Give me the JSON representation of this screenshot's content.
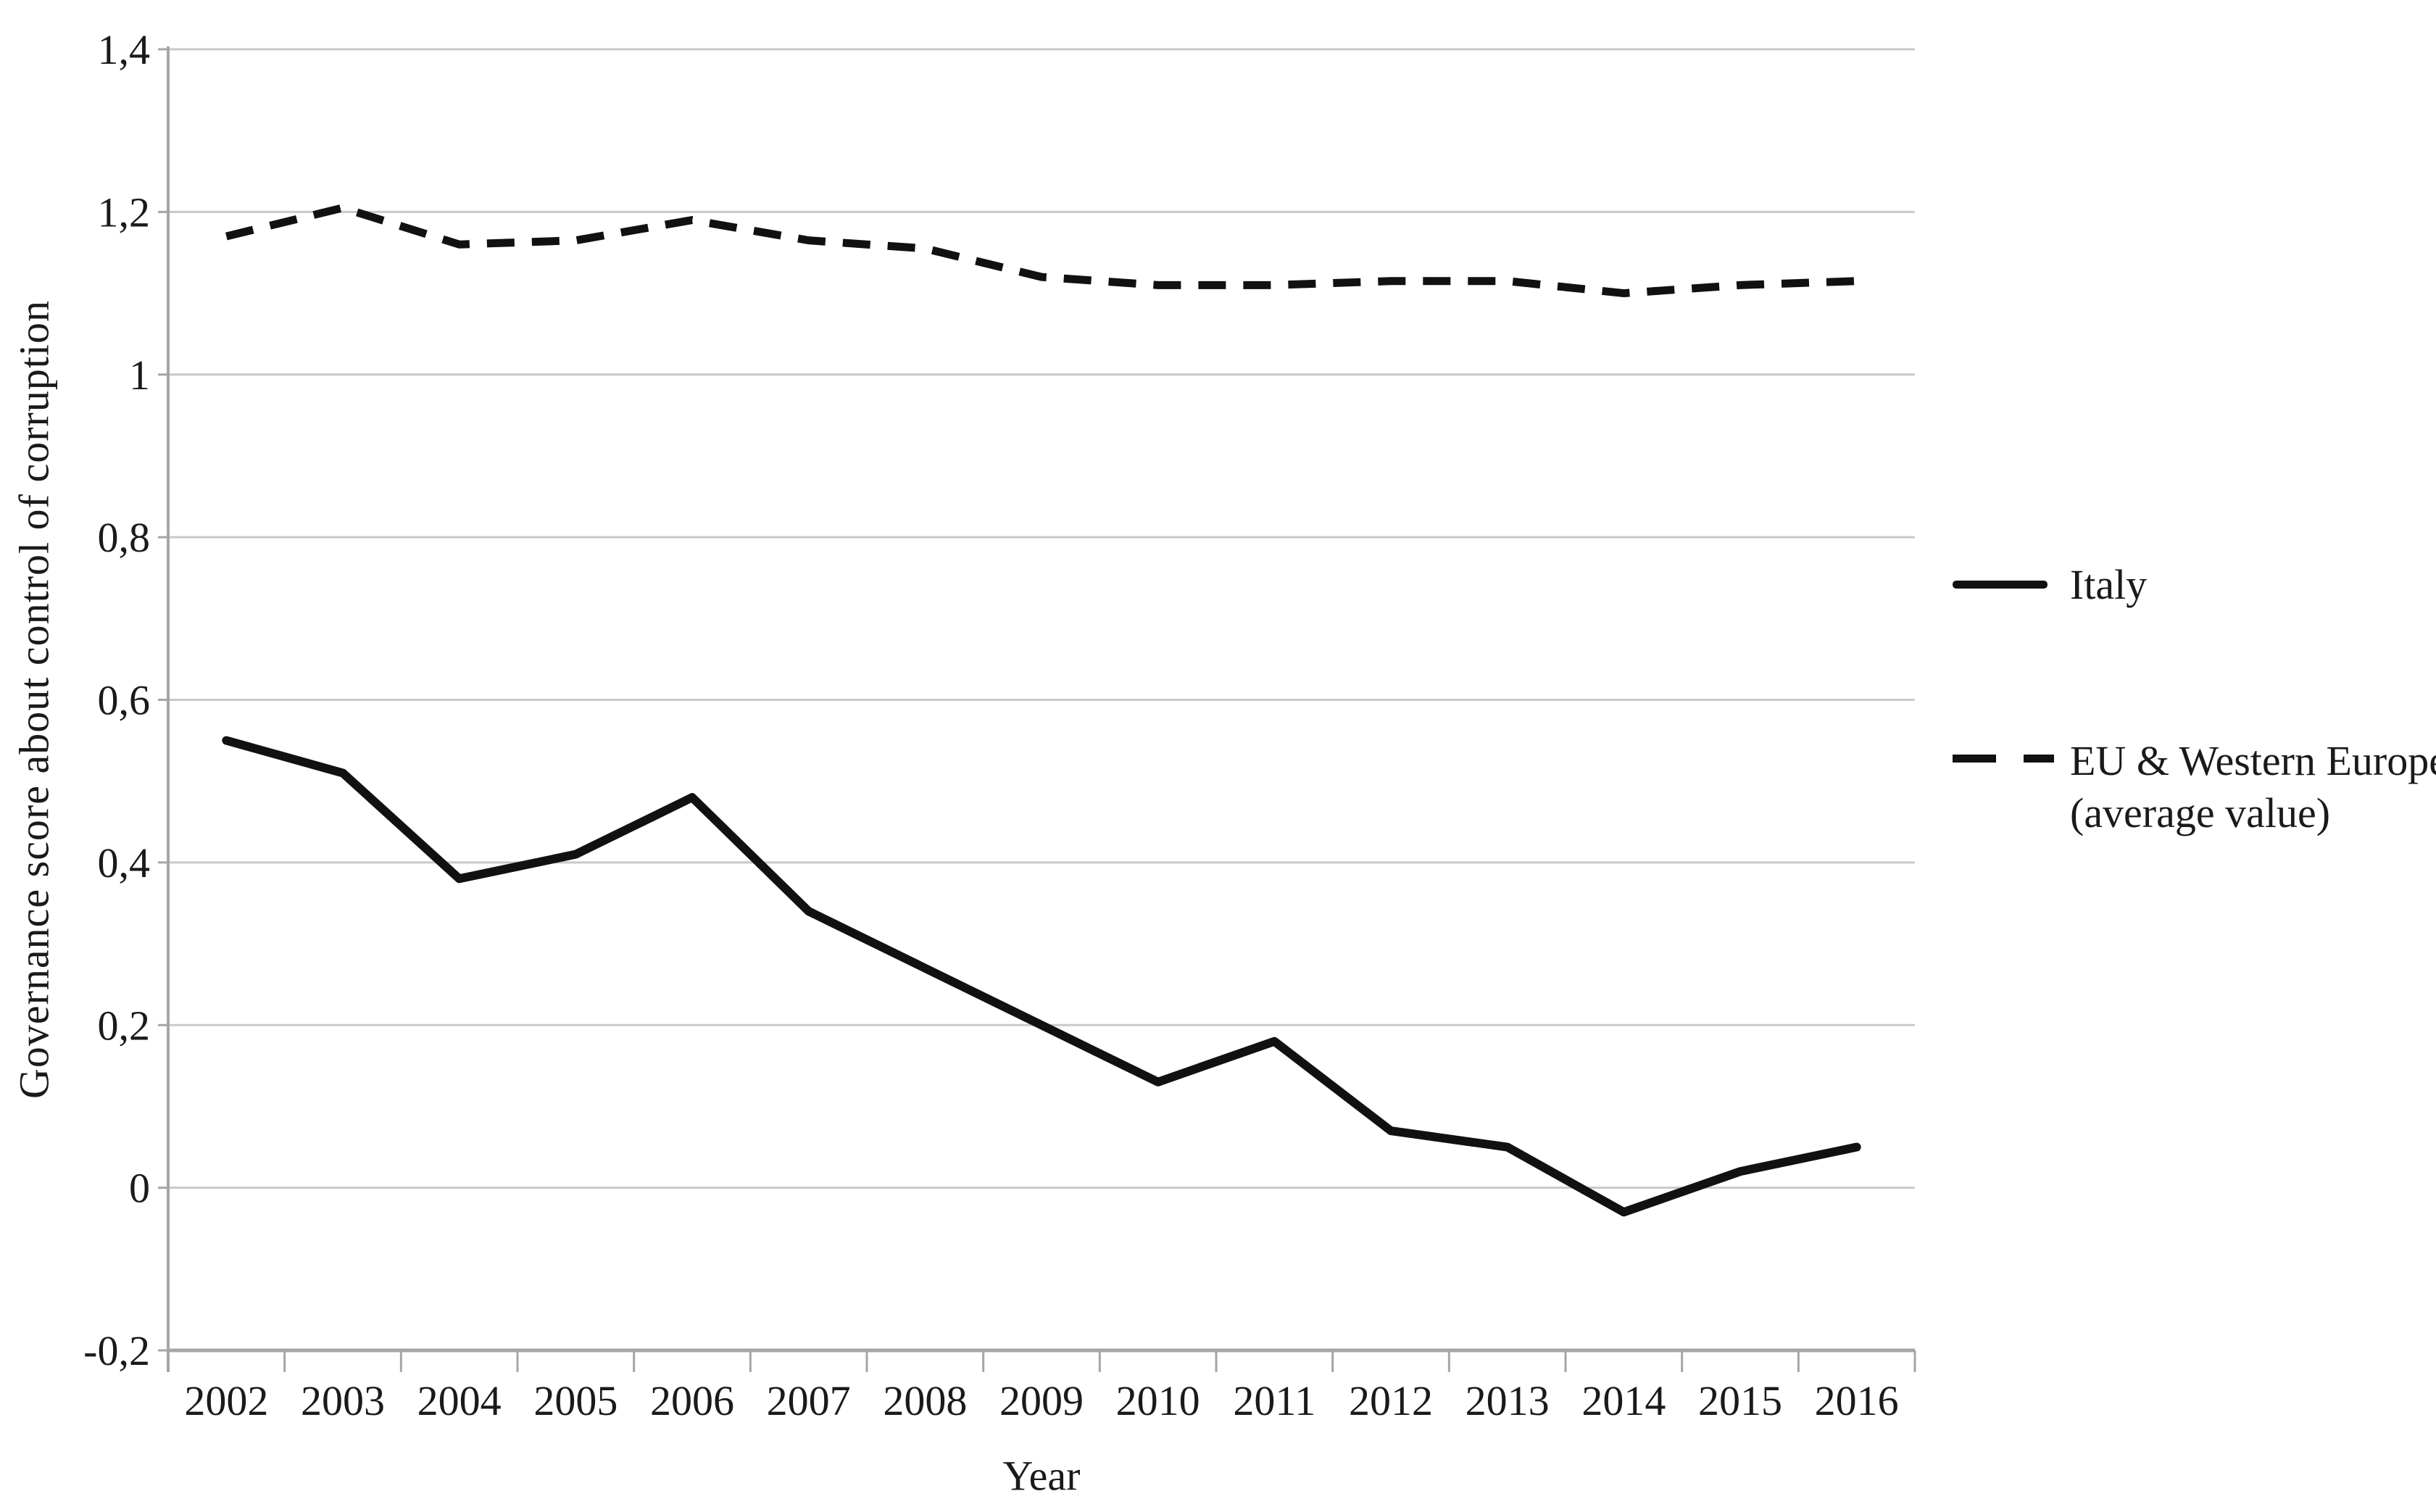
{
  "chart_data": {
    "type": "line",
    "title": "",
    "xlabel": "Year",
    "ylabel": "Governance score about control of corruption",
    "x": [
      2002,
      2003,
      2004,
      2005,
      2006,
      2007,
      2008,
      2009,
      2010,
      2011,
      2012,
      2013,
      2014,
      2015,
      2016
    ],
    "x_tick_labels": [
      "2002",
      "2003",
      "2004",
      "2005",
      "2006",
      "2007",
      "2008",
      "2009",
      "2010",
      "2011",
      "2012",
      "2013",
      "2014",
      "2015",
      "2016"
    ],
    "ylim": [
      -0.2,
      1.4
    ],
    "ytick_values": [
      1.4,
      1.2,
      1.0,
      0.8,
      0.6,
      0.4,
      0.2,
      0.0,
      -0.2
    ],
    "ytick_labels": [
      "1,4",
      "1,2",
      "1",
      "0,8",
      "0,6",
      "0,4",
      "0,2",
      "0",
      "-0,2"
    ],
    "decimal_separator": ",",
    "grid": "horizontal",
    "legend_position": "right",
    "series": [
      {
        "name": "Italy",
        "style": "solid",
        "color": "#111111",
        "values": [
          0.55,
          0.51,
          0.38,
          0.41,
          0.48,
          0.34,
          0.27,
          0.2,
          0.13,
          0.18,
          0.07,
          0.05,
          -0.03,
          0.02,
          0.05
        ]
      },
      {
        "name": "EU & Western Europe (average value)",
        "style": "dashed",
        "color": "#111111",
        "values": [
          1.17,
          1.205,
          1.16,
          1.165,
          1.19,
          1.165,
          1.155,
          1.12,
          1.11,
          1.11,
          1.115,
          1.115,
          1.1,
          1.11,
          1.115
        ]
      }
    ]
  },
  "axes": {
    "x_title": "Year",
    "y_title": "Governance score about control of corruption"
  },
  "legend": {
    "items": [
      {
        "label": "Italy",
        "line_style": "solid"
      },
      {
        "label": "EU & Western Europe",
        "label_line2": "(average value)",
        "line_style": "dashed"
      }
    ]
  },
  "colors": {
    "line": "#111111",
    "gridline": "#c9c9c9",
    "axis": "#a6a6a6",
    "background": "#ffffff",
    "text": "#1a1a1a"
  }
}
